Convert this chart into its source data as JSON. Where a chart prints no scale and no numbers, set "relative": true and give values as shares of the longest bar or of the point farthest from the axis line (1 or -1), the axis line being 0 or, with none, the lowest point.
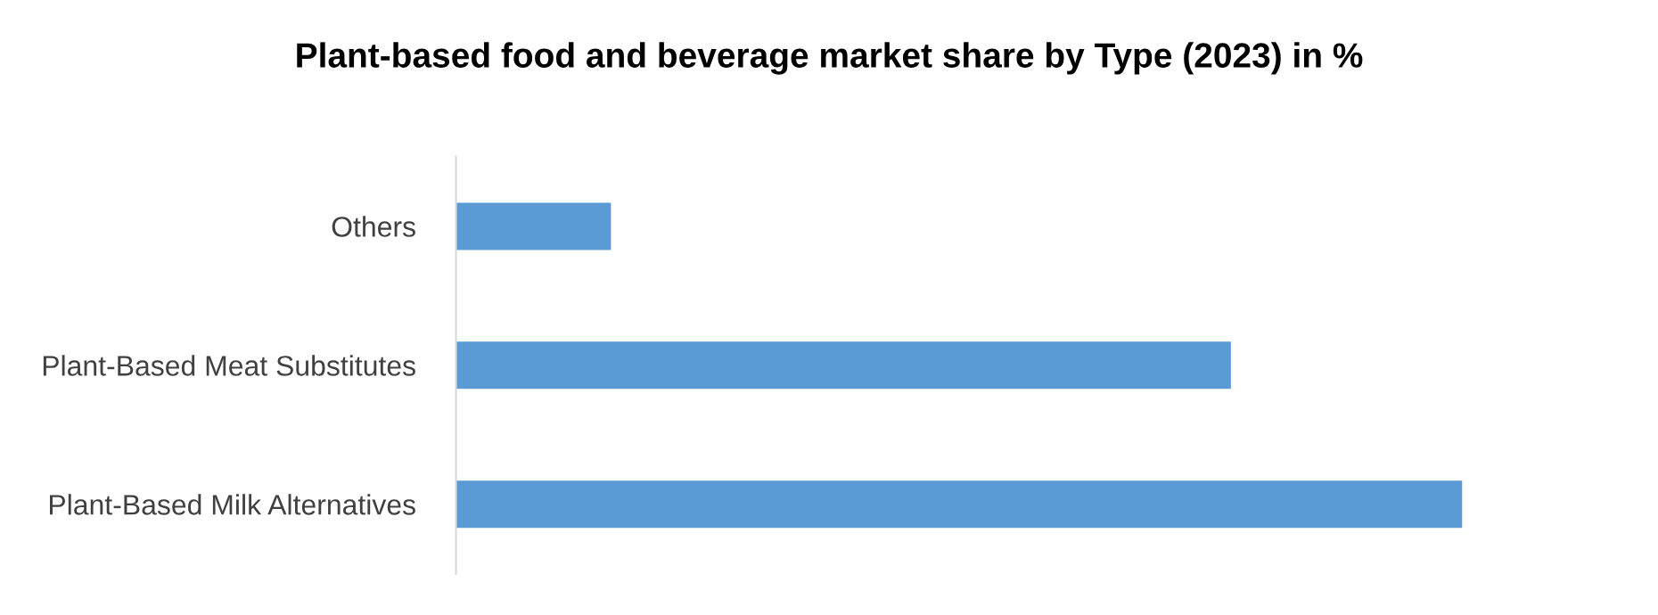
{
  "chart_data": {
    "type": "bar",
    "title": "Plant-based food and beverage market share by Type (2023) in %",
    "orientation": "horizontal",
    "relative": true,
    "grid": false,
    "legend": false,
    "categories": [
      "Others",
      "Plant-Based Meat Substitutes",
      "Plant-Based Milk Alternatives"
    ],
    "values": [
      0.154,
      0.77,
      1
    ],
    "color": "#5b9bd5"
  }
}
